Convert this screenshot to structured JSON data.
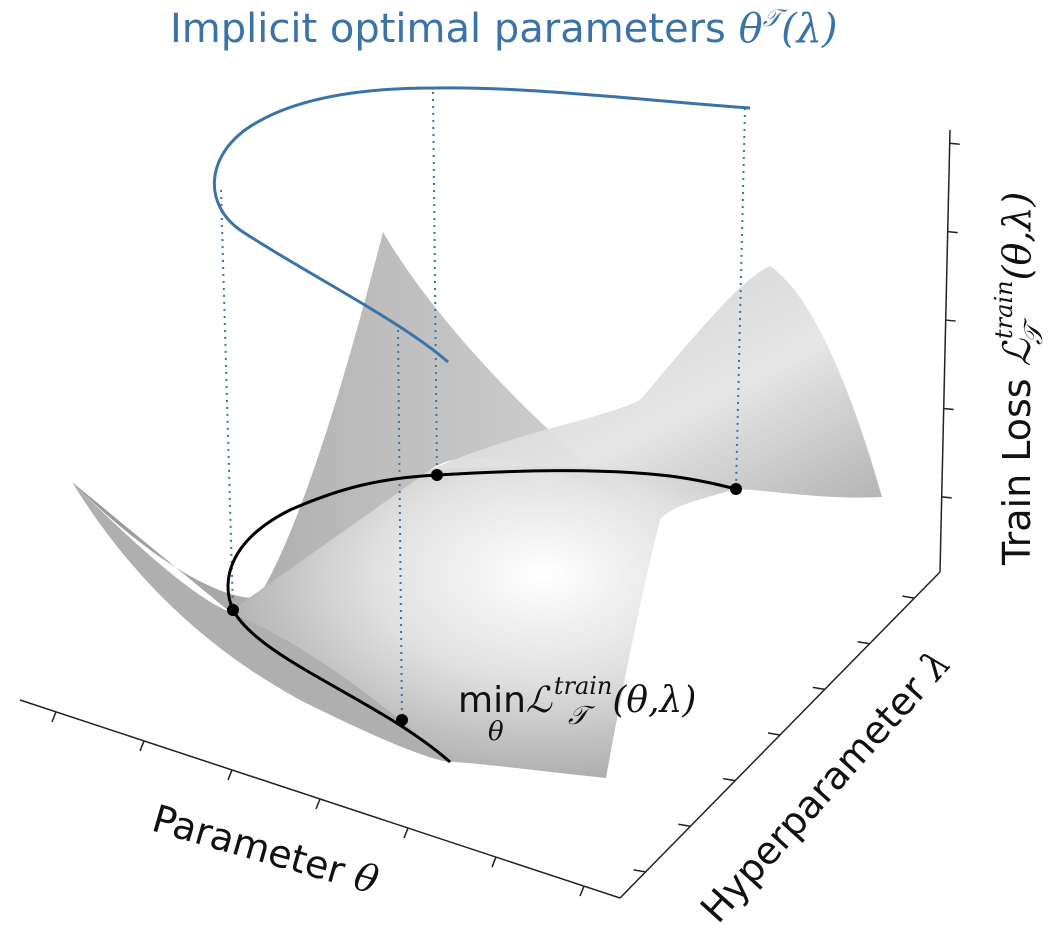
{
  "chart_data": {
    "type": "surface3d",
    "title": "Implicit optimal parameters θ𝒯(λ)",
    "title_parts": {
      "text": "Implicit optimal parameters ",
      "symbol": "θ",
      "superscript": "𝒯",
      "arg": "(λ)"
    },
    "axes": {
      "x": {
        "label_text": "Parameter ",
        "label_symbol": "θ"
      },
      "y": {
        "label_text": "Hyperparameter ",
        "label_symbol": "λ"
      },
      "z": {
        "label_text": "Train Loss ",
        "label_symbol": "ℒ",
        "label_super": "train",
        "label_sub": "𝒯",
        "label_arg": "(θ,λ)"
      }
    },
    "annotation": {
      "text": "min",
      "sub": "θ",
      "symbol": "ℒ",
      "super": "train",
      "sub2": "𝒯",
      "arg": "(θ,λ)"
    },
    "series": [
      {
        "label": "implicit-optimal-curve",
        "color": "#3b73a8",
        "style": "solid"
      },
      {
        "label": "minimum-curve-on-surface",
        "color": "#000000",
        "style": "solid"
      },
      {
        "label": "projection-lines",
        "color": "#3b73a8",
        "style": "dotted"
      }
    ],
    "surface_color": "#b8b8b8",
    "grid": false
  }
}
